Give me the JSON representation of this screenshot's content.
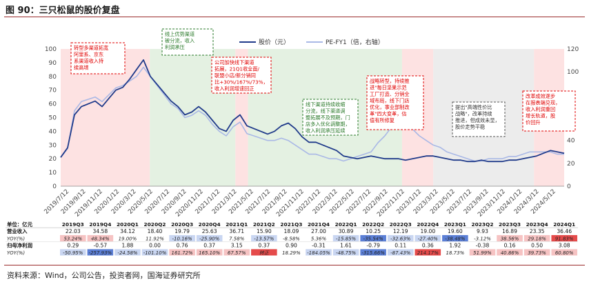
{
  "figure": {
    "title": "图 90：三只松鼠的股价复盘",
    "source": "资料来源：Wind，公司公告，投资者网，国海证券研究所"
  },
  "chart_data": {
    "type": "line",
    "x_tick_labels": [
      "2019/7/12",
      "2019/9/12",
      "2019/11/12",
      "2020/1/12",
      "2020/3/12",
      "2020/5/12",
      "2020/7/12",
      "2020/9/12",
      "2020/11/12",
      "2021/1/12",
      "2021/3/12",
      "2021/5/12",
      "2021/7/12",
      "2021/9/12",
      "2021/11/12",
      "2022/1/12",
      "2022/3/12",
      "2022/5/12",
      "2022/7/12",
      "2022/9/12",
      "2022/11/12",
      "2023/1/12",
      "2023/3/12",
      "2023/5/12",
      "2023/7/12",
      "2023/9/12",
      "2023/11/12",
      "2024/1/12",
      "2024/3/12",
      "2024/5/12"
    ],
    "y_left": {
      "min": 0,
      "max": 100,
      "ticks": [
        0,
        10,
        20,
        30,
        40,
        50,
        60,
        70,
        80,
        90,
        100
      ]
    },
    "y_right": {
      "min": 0,
      "max": 120,
      "ticks": [
        0,
        20,
        40,
        60,
        80,
        100,
        120
      ]
    },
    "legend": {
      "position": "top-right"
    },
    "series": [
      {
        "name": "股价（元）",
        "axis": "left",
        "color": "#1f3a8a",
        "values": [
          21,
          28,
          52,
          58,
          60,
          62,
          58,
          64,
          70,
          72,
          78,
          85,
          92,
          80,
          74,
          68,
          62,
          58,
          52,
          54,
          58,
          54,
          48,
          42,
          40,
          48,
          52,
          44,
          42,
          40,
          38,
          40,
          44,
          46,
          42,
          36,
          32,
          32,
          30,
          28,
          26,
          22,
          21,
          20,
          21,
          22,
          21,
          20,
          20,
          20,
          19,
          20,
          21,
          22,
          22,
          21,
          20,
          19,
          19,
          18,
          18,
          19,
          18,
          18,
          18,
          19,
          19,
          20,
          21,
          22,
          24,
          26,
          25,
          24
        ]
      },
      {
        "name": "PE-FY1（倍，右轴）",
        "axis": "right",
        "color": "#a9b8e6",
        "values": [
          25,
          33,
          66,
          74,
          76,
          78,
          74,
          80,
          86,
          88,
          92,
          96,
          104,
          96,
          88,
          80,
          72,
          68,
          60,
          62,
          66,
          62,
          54,
          48,
          44,
          52,
          56,
          46,
          44,
          42,
          40,
          40,
          42,
          40,
          36,
          32,
          28,
          28,
          26,
          24,
          24,
          22,
          24,
          26,
          28,
          30,
          38,
          44,
          52,
          58,
          56,
          50,
          44,
          40,
          36,
          34,
          30,
          28,
          26,
          24,
          22,
          22,
          24,
          24,
          24,
          26,
          26,
          28,
          30,
          30,
          30,
          30,
          28,
          28
        ]
      }
    ],
    "shaded_periods": [
      {
        "label": "pink",
        "from": 0.0,
        "to": 0.177,
        "color": "#fde2e2"
      },
      {
        "label": "green",
        "from": 0.177,
        "to": 0.347,
        "color": "#e4f1e2"
      },
      {
        "label": "pink",
        "from": 0.347,
        "to": 0.372,
        "color": "#fde2e2"
      },
      {
        "label": "green",
        "from": 0.372,
        "to": 0.678,
        "color": "#e4f1e2"
      },
      {
        "label": "pink",
        "from": 0.678,
        "to": 0.74,
        "color": "#fde2e2"
      },
      {
        "label": "gray",
        "from": 0.74,
        "to": 0.94,
        "color": "#ececec"
      },
      {
        "label": "pink",
        "from": 0.94,
        "to": 1.0,
        "color": "#fde2e2"
      }
    ]
  },
  "annotations": [
    {
      "text": "转型多渠道拓宽阿里系、京东系渠道收入持续高增",
      "style": "red"
    },
    {
      "text": "线上优势渠道被分流，收入利润承压",
      "style": "green"
    },
    {
      "text": "公司加快线下渠道拓展，21Q1收全面/联盟小店/新分销同比+30%/167%/73%，收入利润增速回正",
      "style": "red"
    },
    {
      "text": "线下渠道持续收缩分流，线下渠道调整拓展不及预期，门店多入优化调整期，收入利润承压延续",
      "style": "green"
    },
    {
      "text": "战略转型，持续推进\"每日坚果示范工厂打造、分销全域布局，线下门店优化，事业部制改革\"四大变革，估值有所修复",
      "style": "red"
    },
    {
      "text": "提出\"高端性价比战略\"，改革持续推进，但成效未显，股价走势平稳",
      "style": "gray"
    },
    {
      "text": "改革成效逐步在报表端兑现，收入利润重回增长轨道，股价回升",
      "style": "red"
    }
  ],
  "table": {
    "unit_label": "单位：亿元",
    "quarters": [
      "2019Q3",
      "2019Q4",
      "2020Q1",
      "2020Q2",
      "2020Q3",
      "2020Q4",
      "2021Q1",
      "2021Q2",
      "2021Q3",
      "2021Q4",
      "2022Q1",
      "2022Q2",
      "2022Q3",
      "2022Q4",
      "2023Q1",
      "2023Q2",
      "2023Q3",
      "2023Q4",
      "2024Q1"
    ],
    "rows": [
      {
        "label": "营业收入",
        "values": [
          "22.03",
          "34.58",
          "34.12",
          "18.40",
          "19.79",
          "25.63",
          "36.71",
          "15.90",
          "18.09",
          "27.00",
          "30.89",
          "10.25",
          "12.19",
          "19.00",
          "19.60",
          "9.93",
          "16.89",
          "23.35",
          "36.46"
        ]
      },
      {
        "label": "YOY(%)",
        "values": [
          "53.24%",
          "48.34%",
          "19.00%",
          "11.92%",
          "-10.16%",
          "-25.90%",
          "7.58%",
          "-13.57%",
          "-8.58%",
          "5.36%",
          "-15.85%",
          "-35.54%",
          "-32.63%",
          "-27.40%",
          "-38.48%",
          "-3.12%",
          "38.56%",
          "29.18%",
          "91.83%"
        ]
      },
      {
        "label": "归母净利润",
        "values": [
          "0.29",
          "-0.57",
          "1.88",
          "0.00",
          "0.76",
          "0.37",
          "3.15",
          "0.37",
          "0.90",
          "-0.31",
          "1.61",
          "-0.79",
          "0.11",
          "0.36",
          "1.92",
          "-0.38",
          "0.16",
          "0.50",
          "3.08"
        ]
      },
      {
        "label": "YOY(%)",
        "values": [
          "-50.95%",
          "-257.93%",
          "-24.58%",
          "-101.10%",
          "161.72%",
          "165.10%",
          "67.57%",
          "转正",
          "18.29%",
          "-184.05%",
          "-48.75%",
          "-315.66%",
          "-87.43%",
          "214.17%",
          "18.73%",
          "51.99%",
          "40.86%",
          "39.73%",
          "60.80%"
        ]
      }
    ],
    "colors": {
      "strong_blue": "#5b7fd6",
      "light_blue": "#c9d6f2",
      "strong_red": "#e54b4b",
      "light_red": "#f6c3c3",
      "none": "#ffffff"
    },
    "row_cell_colors": [
      [
        "none",
        "none",
        "none",
        "none",
        "none",
        "none",
        "none",
        "none",
        "none",
        "none",
        "none",
        "none",
        "none",
        "none",
        "none",
        "none",
        "none",
        "none",
        "none"
      ],
      [
        "light_red",
        "light_red",
        "none",
        "none",
        "light_blue",
        "light_blue",
        "none",
        "light_blue",
        "none",
        "none",
        "light_blue",
        "strong_blue",
        "light_blue",
        "light_blue",
        "strong_blue",
        "none",
        "light_red",
        "light_red",
        "strong_red"
      ],
      [
        "none",
        "none",
        "none",
        "none",
        "none",
        "none",
        "none",
        "none",
        "none",
        "none",
        "none",
        "none",
        "none",
        "none",
        "none",
        "none",
        "none",
        "none",
        "none"
      ],
      [
        "light_blue",
        "strong_blue",
        "light_blue",
        "light_blue",
        "light_red",
        "light_red",
        "light_red",
        "strong_red",
        "none",
        "light_blue",
        "light_blue",
        "strong_blue",
        "light_blue",
        "strong_red",
        "none",
        "light_red",
        "light_red",
        "light_red",
        "light_red"
      ]
    ]
  }
}
